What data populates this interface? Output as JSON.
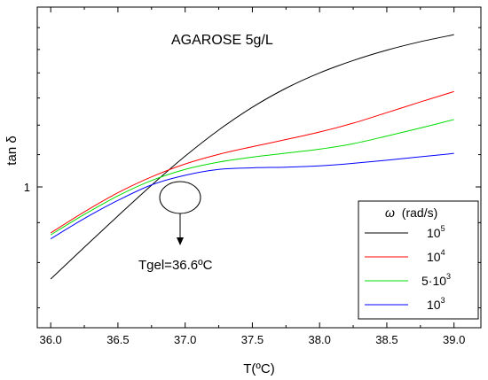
{
  "chart_data": {
    "type": "line",
    "title": "AGAROSE 5g/L",
    "xlabel": "T(ºC)",
    "ylabel": "tan δ",
    "xlim": [
      35.9,
      39.2
    ],
    "ylim": [
      0.66,
      1.7
    ],
    "x_ticks": [
      "36.0",
      "36.5",
      "37.0",
      "37.5",
      "38.0",
      "38.5",
      "39.0"
    ],
    "y_ticks": [
      "1"
    ],
    "legend_title_symbol": "ω",
    "legend_title_text": "(rad/s)",
    "legend_placement": "bottom-right",
    "annotation": "Tgel=36.6ºC",
    "series": [
      {
        "name": "10^5",
        "legend_base": "10",
        "legend_exp": "5",
        "color": "#000000",
        "x": [
          36.0,
          36.25,
          36.5,
          36.75,
          37.0,
          37.25,
          37.5,
          37.75,
          38.0,
          38.25,
          38.5,
          38.75,
          39.0
        ],
        "y": [
          0.762,
          0.837,
          0.918,
          1.005,
          1.095,
          1.183,
          1.265,
          1.338,
          1.4,
          1.452,
          1.497,
          1.535,
          1.567
        ]
      },
      {
        "name": "10^4",
        "legend_base": "10",
        "legend_exp": "4",
        "color": "#ff0000",
        "x": [
          36.0,
          36.25,
          36.5,
          36.75,
          37.0,
          37.25,
          37.5,
          37.75,
          38.0,
          38.25,
          38.5,
          38.75,
          39.0
        ],
        "y": [
          0.873,
          0.929,
          0.983,
          1.03,
          1.07,
          1.101,
          1.126,
          1.15,
          1.176,
          1.207,
          1.245,
          1.285,
          1.325
        ]
      },
      {
        "name": "5·10^3",
        "legend_base": "5·10",
        "legend_exp": "3",
        "color": "#00dd00",
        "x": [
          36.0,
          36.25,
          36.5,
          36.75,
          37.0,
          37.25,
          37.5,
          37.75,
          38.0,
          38.25,
          38.5,
          38.75,
          39.0
        ],
        "y": [
          0.868,
          0.922,
          0.974,
          1.019,
          1.053,
          1.076,
          1.092,
          1.105,
          1.118,
          1.136,
          1.162,
          1.19,
          1.22
        ]
      },
      {
        "name": "10^3",
        "legend_base": "10",
        "legend_exp": "3",
        "color": "#0000ff",
        "x": [
          36.0,
          36.25,
          36.5,
          36.75,
          37.0,
          37.25,
          37.5,
          37.75,
          38.0,
          38.25,
          38.5,
          38.75,
          39.0
        ],
        "y": [
          0.858,
          0.911,
          0.961,
          1.006,
          1.035,
          1.053,
          1.058,
          1.06,
          1.064,
          1.072,
          1.082,
          1.093,
          1.104
        ]
      }
    ]
  }
}
